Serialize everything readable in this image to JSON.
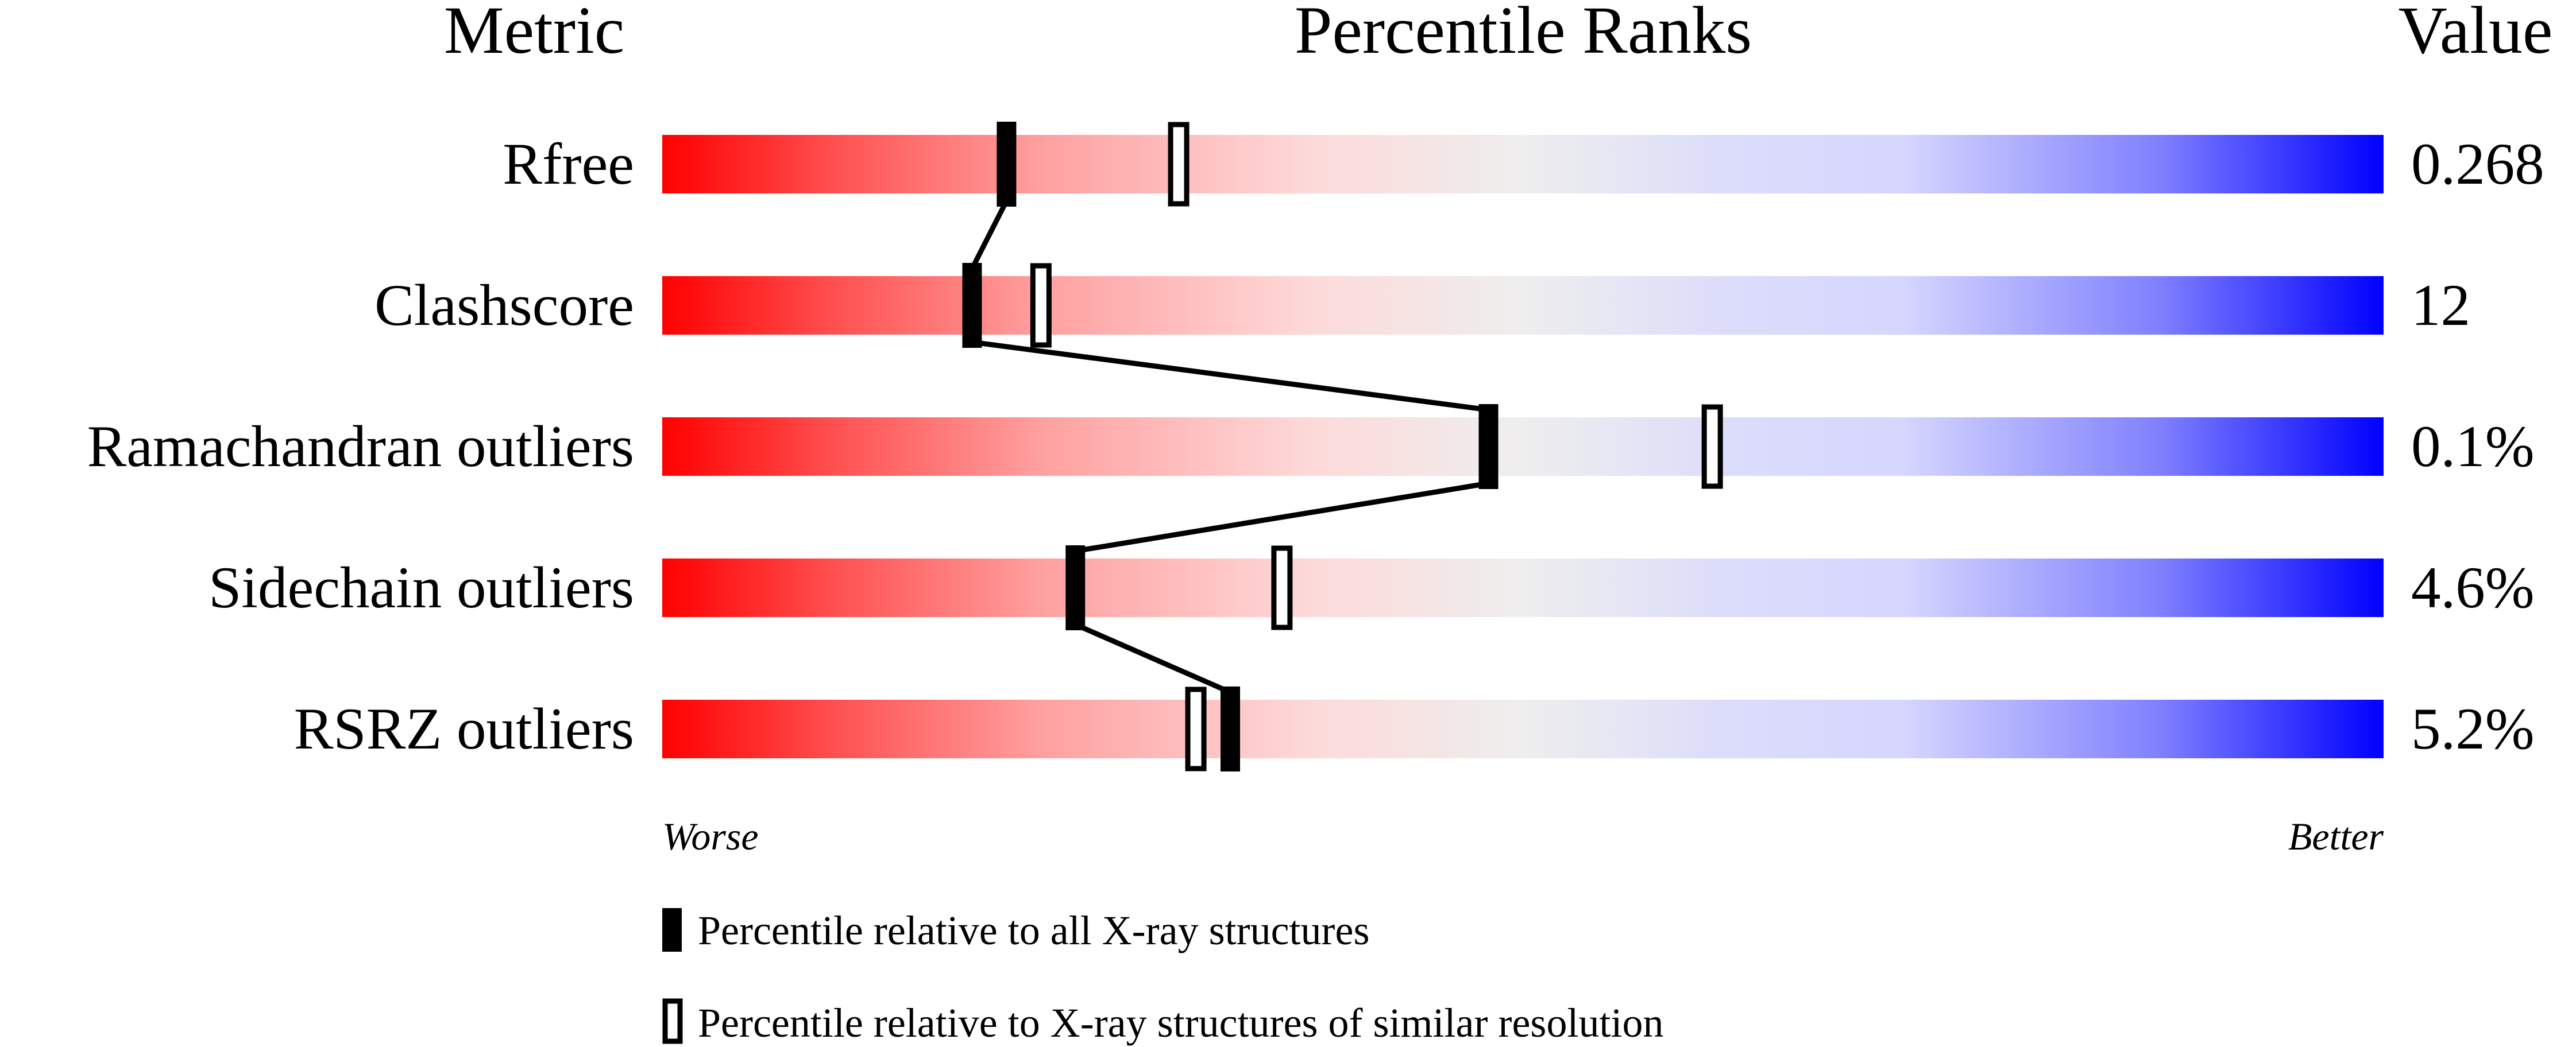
{
  "chart_data": {
    "type": "percentile-slider",
    "headers": {
      "metric": "Metric",
      "ranks": "Percentile Ranks",
      "value": "Value"
    },
    "xlim": [
      0,
      100
    ],
    "metrics": [
      {
        "name": "Rfree",
        "value": "0.268",
        "percentile_all": 20,
        "percentile_similar": 30
      },
      {
        "name": "Clashscore",
        "value": "12",
        "percentile_all": 18,
        "percentile_similar": 22
      },
      {
        "name": "Ramachandran outliers",
        "value": "0.1%",
        "percentile_all": 48,
        "percentile_similar": 61
      },
      {
        "name": "Sidechain outliers",
        "value": "4.6%",
        "percentile_all": 24,
        "percentile_similar": 36
      },
      {
        "name": "RSRZ outliers",
        "value": "5.2%",
        "percentile_all": 33,
        "percentile_similar": 31
      }
    ],
    "axis_labels": {
      "left": "Worse",
      "right": "Better"
    },
    "legend": {
      "all": "Percentile relative to all X-ray structures",
      "similar": "Percentile relative to X-ray structures of similar resolution"
    },
    "colors": {
      "worse": "#ff0000",
      "middle": "#eeeeee",
      "better": "#0000ff",
      "marker": "#000000"
    }
  }
}
